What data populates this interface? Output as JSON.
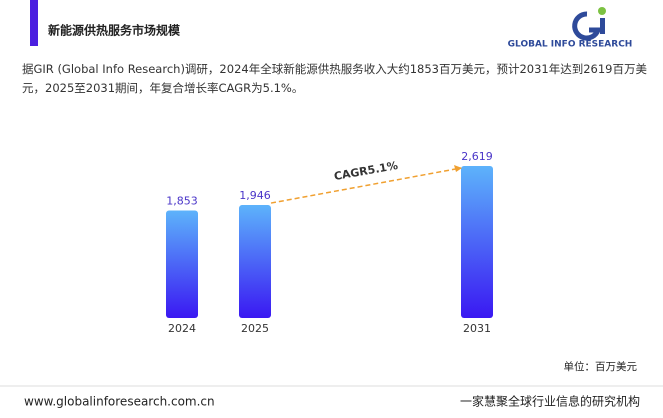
{
  "header": {
    "title": "新能源供热服务市场规模",
    "logo": "GLOBAL INFO RESEARCH"
  },
  "description": "据GIR (Global Info Research)调研，2024年全球新能源供热服务收入大约1853百万美元，预计2031年达到2619百万美元，2025至2031期间，年复合增长率CAGR为5.1%。",
  "chart_data": {
    "type": "bar",
    "categories": [
      "2024",
      "2025",
      "2031"
    ],
    "values": [
      1853,
      1946,
      2619
    ],
    "value_labels": [
      "1,853",
      "1,946",
      "2,619"
    ],
    "annotation": "CAGR5.1%",
    "unit": "单位：百万美元"
  },
  "footer": {
    "website": "www.globalinforesearch.com.cn",
    "slogan": "一家慧聚全球行业信息的研究机构"
  }
}
